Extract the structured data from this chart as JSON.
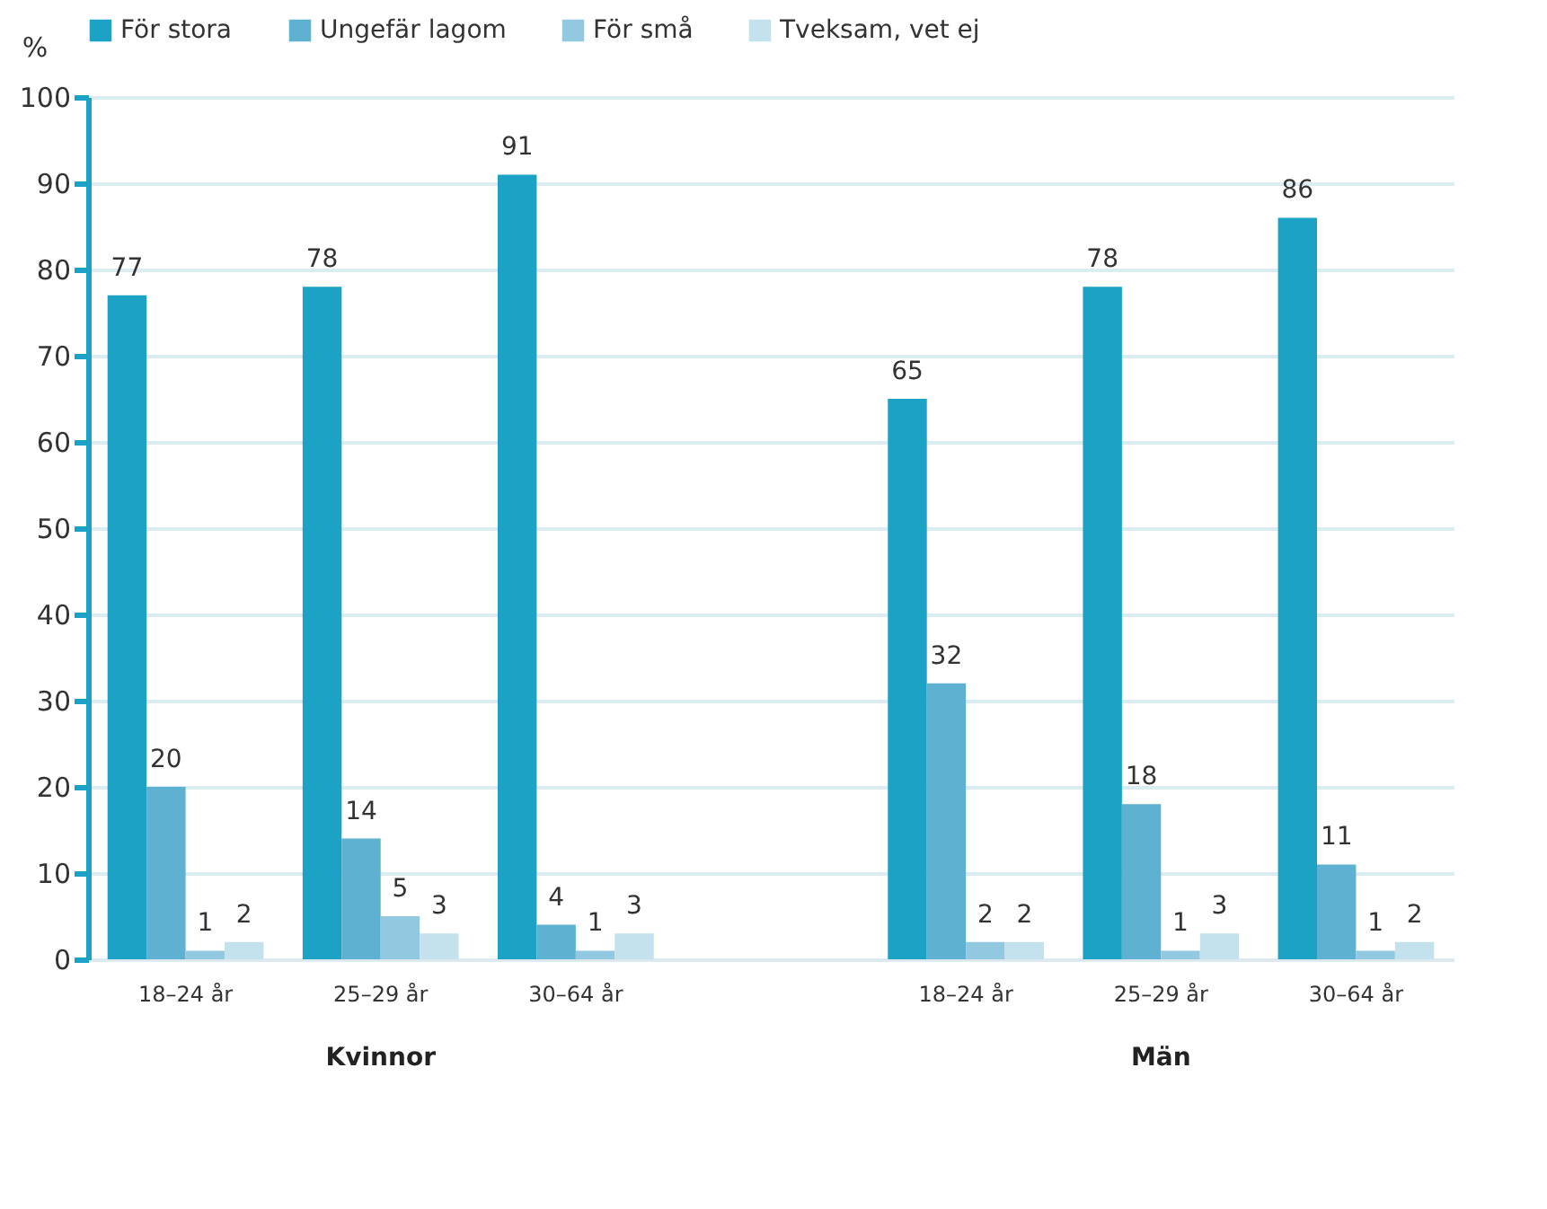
{
  "chart_data": {
    "type": "bar",
    "ylabel": "%",
    "categories": [
      "18–24 år",
      "25–29 år",
      "30–64 år",
      null,
      "18–24 år",
      "25–29 år",
      "30–64 år"
    ],
    "series": [
      {
        "name": "För stora",
        "color": "#1ca2c5",
        "values": [
          77,
          78,
          91,
          null,
          65,
          78,
          86
        ]
      },
      {
        "name": "Ungefär lagom",
        "color": "#5eb1d0",
        "values": [
          20,
          14,
          4,
          null,
          32,
          18,
          11
        ]
      },
      {
        "name": "För små",
        "color": "#93c9e0",
        "values": [
          1,
          5,
          1,
          null,
          2,
          1,
          1
        ]
      },
      {
        "name": "Tveksam, vet ej",
        "color": "#c3e2ee",
        "values": [
          2,
          3,
          3,
          null,
          2,
          3,
          2
        ]
      }
    ],
    "ylim": [
      0,
      100
    ],
    "yticks": [
      0,
      10,
      20,
      30,
      40,
      50,
      60,
      70,
      80,
      90,
      100
    ],
    "annotations": [
      "Kvinnor",
      "Män"
    ],
    "data_labels": true,
    "grid": "y",
    "legend": "top"
  }
}
